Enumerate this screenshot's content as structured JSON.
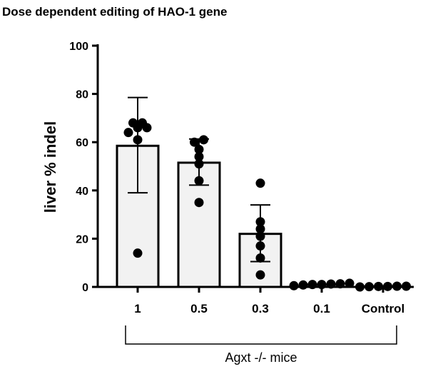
{
  "chart_data": {
    "type": "bar",
    "title": "Dose dependent editing of HAO-1 gene",
    "ylabel": "liver % indel",
    "group_label": "Agxt -/- mice",
    "ylim": [
      0,
      100
    ],
    "yticks": [
      0,
      20,
      40,
      60,
      80,
      100
    ],
    "grid": false,
    "categories": [
      "1",
      "0.5",
      "0.3",
      "0.1",
      "Control"
    ],
    "values": [
      58.5,
      51.5,
      22,
      1,
      0.2
    ],
    "error_plus": [
      20,
      9.8,
      12,
      0.3,
      0.1
    ],
    "error_minus": [
      19.5,
      9.3,
      11.5,
      0.3,
      0.1
    ],
    "points": [
      [
        14,
        61,
        64,
        66,
        66,
        68,
        68
      ],
      [
        35,
        44,
        51,
        54,
        57,
        60,
        61
      ],
      [
        5,
        12,
        17,
        21,
        24,
        27,
        43
      ],
      [
        0.5,
        0.8,
        1,
        1,
        1.2,
        1.3,
        1.5
      ],
      [
        0,
        0.1,
        0.2,
        0.2,
        0.3,
        0.3
      ]
    ],
    "bar_fill": "#f2f2f2",
    "stroke": "#000000",
    "point_color": "#000000"
  }
}
